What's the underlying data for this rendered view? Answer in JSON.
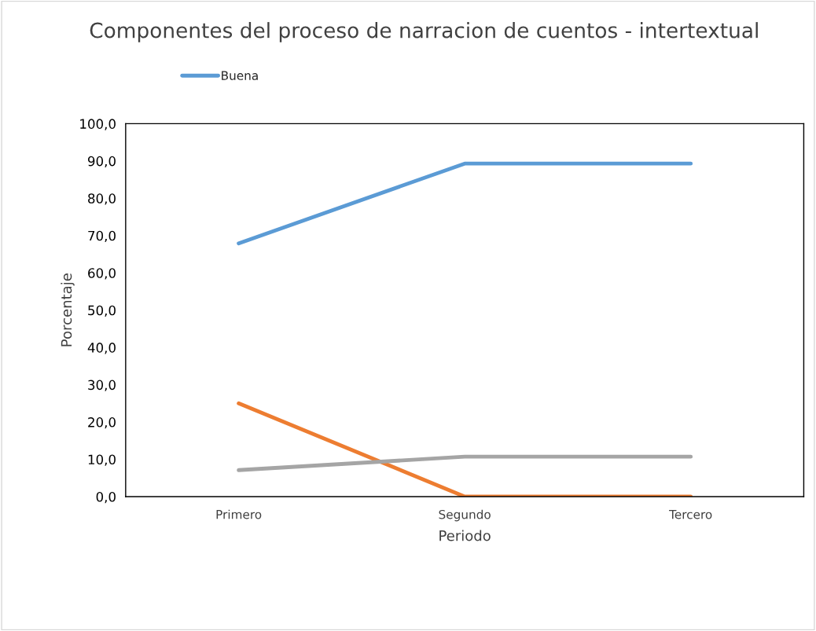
{
  "chart_data": {
    "type": "line",
    "title": "Componentes del proceso de narracion de cuentos - intertextual",
    "xlabel": "Periodo",
    "ylabel": "Porcentaje",
    "categories": [
      "Primero",
      "Segundo",
      "Tercero"
    ],
    "series": [
      {
        "name": "Buena",
        "color": "#5b9bd5",
        "values": [
          67.9,
          89.3,
          89.3
        ]
      },
      {
        "color": "#ed7d31",
        "values": [
          25.0,
          0.0,
          0.0
        ]
      },
      {
        "color": "#a5a5a5",
        "values": [
          7.1,
          10.7,
          10.7
        ]
      }
    ],
    "ylim": [
      0,
      100
    ],
    "yticks": [
      {
        "value": 0,
        "label": "0,0"
      },
      {
        "value": 10,
        "label": "10,0"
      },
      {
        "value": 20,
        "label": "20,0"
      },
      {
        "value": 30,
        "label": "30,0"
      },
      {
        "value": 40,
        "label": "40,0"
      },
      {
        "value": 50,
        "label": "50,0"
      },
      {
        "value": 60,
        "label": "60,0"
      },
      {
        "value": 70,
        "label": "70,0"
      },
      {
        "value": 80,
        "label": "80,0"
      },
      {
        "value": 90,
        "label": "90,0"
      },
      {
        "value": 100,
        "label": "100,0"
      }
    ],
    "grid": false,
    "legend": "top left",
    "marker": "none",
    "line_style": "solid"
  }
}
